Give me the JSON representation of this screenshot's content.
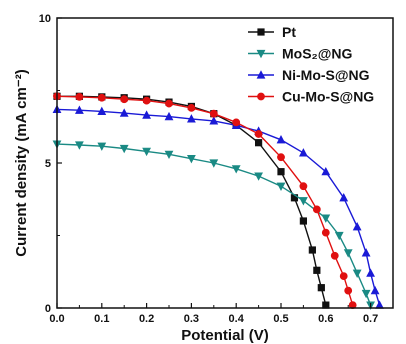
{
  "chart_data": {
    "type": "line",
    "xlabel": "Potential (V)",
    "ylabel": "Current density (mA cm⁻²)",
    "xlim": [
      0.0,
      0.75
    ],
    "ylim": [
      0,
      10
    ],
    "x_ticks": [
      "0.0",
      "0.1",
      "0.2",
      "0.3",
      "0.4",
      "0.5",
      "0.6",
      "0.7"
    ],
    "y_ticks": [
      "0",
      "5",
      "10"
    ],
    "legend_position": "top-right",
    "series": [
      {
        "name": "Pt",
        "color": "#111111",
        "marker": "square",
        "points": [
          [
            0.0,
            7.3
          ],
          [
            0.05,
            7.3
          ],
          [
            0.1,
            7.28
          ],
          [
            0.15,
            7.25
          ],
          [
            0.2,
            7.2
          ],
          [
            0.25,
            7.1
          ],
          [
            0.3,
            6.95
          ],
          [
            0.35,
            6.7
          ],
          [
            0.4,
            6.3
          ],
          [
            0.45,
            5.7
          ],
          [
            0.5,
            4.7
          ],
          [
            0.53,
            3.8
          ],
          [
            0.55,
            3.0
          ],
          [
            0.57,
            2.0
          ],
          [
            0.58,
            1.3
          ],
          [
            0.59,
            0.7
          ],
          [
            0.6,
            0.1
          ]
        ]
      },
      {
        "name": "MoS₂@NG",
        "color": "#1a8a84",
        "marker": "triangle-down",
        "points": [
          [
            0.0,
            5.65
          ],
          [
            0.05,
            5.62
          ],
          [
            0.1,
            5.58
          ],
          [
            0.15,
            5.5
          ],
          [
            0.2,
            5.4
          ],
          [
            0.25,
            5.3
          ],
          [
            0.3,
            5.15
          ],
          [
            0.35,
            5.0
          ],
          [
            0.4,
            4.8
          ],
          [
            0.45,
            4.55
          ],
          [
            0.5,
            4.2
          ],
          [
            0.55,
            3.7
          ],
          [
            0.6,
            3.1
          ],
          [
            0.63,
            2.5
          ],
          [
            0.65,
            1.9
          ],
          [
            0.67,
            1.2
          ],
          [
            0.69,
            0.5
          ],
          [
            0.7,
            0.1
          ]
        ]
      },
      {
        "name": "Ni-Mo-S@NG",
        "color": "#1a1ad6",
        "marker": "triangle-up",
        "points": [
          [
            0.0,
            6.85
          ],
          [
            0.05,
            6.82
          ],
          [
            0.1,
            6.78
          ],
          [
            0.15,
            6.72
          ],
          [
            0.2,
            6.65
          ],
          [
            0.25,
            6.6
          ],
          [
            0.3,
            6.52
          ],
          [
            0.35,
            6.45
          ],
          [
            0.4,
            6.3
          ],
          [
            0.45,
            6.1
          ],
          [
            0.5,
            5.8
          ],
          [
            0.55,
            5.35
          ],
          [
            0.6,
            4.7
          ],
          [
            0.64,
            3.8
          ],
          [
            0.67,
            2.8
          ],
          [
            0.69,
            1.9
          ],
          [
            0.7,
            1.2
          ],
          [
            0.71,
            0.6
          ],
          [
            0.72,
            0.1
          ]
        ]
      },
      {
        "name": "Cu-Mo-S@NG",
        "color": "#e01010",
        "marker": "circle",
        "points": [
          [
            0.0,
            7.3
          ],
          [
            0.05,
            7.28
          ],
          [
            0.1,
            7.25
          ],
          [
            0.15,
            7.2
          ],
          [
            0.2,
            7.15
          ],
          [
            0.25,
            7.05
          ],
          [
            0.3,
            6.9
          ],
          [
            0.35,
            6.7
          ],
          [
            0.4,
            6.4
          ],
          [
            0.45,
            6.0
          ],
          [
            0.5,
            5.2
          ],
          [
            0.55,
            4.2
          ],
          [
            0.58,
            3.4
          ],
          [
            0.6,
            2.6
          ],
          [
            0.62,
            1.8
          ],
          [
            0.64,
            1.1
          ],
          [
            0.65,
            0.6
          ],
          [
            0.66,
            0.1
          ]
        ]
      }
    ]
  }
}
